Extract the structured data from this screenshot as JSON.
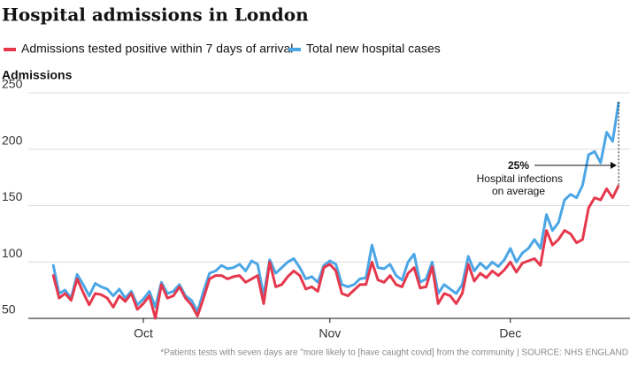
{
  "chart_data": {
    "type": "line",
    "title": "Hospital admissions in London",
    "y_label": "Admissions",
    "categories": [
      null,
      null,
      null,
      null,
      null,
      null,
      null,
      null,
      null,
      null,
      null,
      null,
      null,
      null,
      null,
      "Oct",
      null,
      null,
      null,
      null,
      null,
      null,
      null,
      null,
      null,
      null,
      null,
      null,
      null,
      null,
      null,
      null,
      null,
      null,
      null,
      null,
      null,
      null,
      null,
      null,
      null,
      null,
      null,
      null,
      null,
      null,
      "Nov",
      null,
      null,
      null,
      null,
      null,
      null,
      null,
      null,
      null,
      null,
      null,
      null,
      null,
      null,
      null,
      null,
      null,
      null,
      null,
      null,
      null,
      null,
      null,
      null,
      null,
      null,
      null,
      null,
      null,
      "Dec",
      null,
      null,
      null,
      null,
      null,
      null,
      null,
      null,
      null,
      null,
      null,
      null,
      null,
      null,
      null,
      null,
      null,
      null
    ],
    "series": [
      {
        "name": "Total new hospital cases",
        "color": "#4ba6e6",
        "values": [
          98,
          72,
          75,
          68,
          89,
          80,
          70,
          81,
          78,
          76,
          70,
          76,
          68,
          74,
          62,
          67,
          74,
          60,
          82,
          72,
          74,
          80,
          70,
          66,
          56,
          74,
          90,
          92,
          97,
          94,
          95,
          98,
          92,
          101,
          98,
          70,
          102,
          90,
          95,
          100,
          103,
          95,
          85,
          87,
          82,
          97,
          101,
          98,
          80,
          78,
          80,
          85,
          86,
          115,
          95,
          94,
          98,
          88,
          84,
          100,
          107,
          82,
          85,
          100,
          72,
          80,
          76,
          72,
          80,
          105,
          92,
          99,
          94,
          100,
          96,
          102,
          112,
          100,
          108,
          112,
          120,
          112,
          142,
          128,
          135,
          155,
          160,
          157,
          168,
          195,
          198,
          188,
          215,
          207,
          242
        ]
      },
      {
        "name": "Admissions tested positive within 7 days of arrival",
        "color": "#e5384d",
        "values": [
          89,
          68,
          72,
          66,
          85,
          73,
          62,
          72,
          71,
          68,
          60,
          70,
          65,
          72,
          58,
          63,
          70,
          50,
          80,
          68,
          70,
          78,
          68,
          62,
          52,
          68,
          85,
          88,
          88,
          85,
          87,
          88,
          82,
          85,
          88,
          63,
          100,
          78,
          80,
          87,
          92,
          88,
          76,
          78,
          74,
          95,
          98,
          92,
          72,
          70,
          75,
          80,
          80,
          100,
          84,
          82,
          88,
          80,
          78,
          90,
          95,
          77,
          78,
          96,
          63,
          72,
          70,
          63,
          72,
          98,
          83,
          90,
          86,
          92,
          88,
          93,
          100,
          91,
          99,
          101,
          103,
          97,
          128,
          115,
          120,
          128,
          125,
          117,
          120,
          148,
          157,
          155,
          165,
          157,
          168
        ]
      }
    ],
    "ylim": [
      45,
      255
    ],
    "yticks": [
      50,
      100,
      150,
      200,
      250
    ],
    "grid": true,
    "annotation": {
      "value": "25%",
      "line1": "Hospital infections",
      "line2": "on average"
    },
    "note": "*Patients tests with seven days are \"more likely to [have caught covid] from the community | SOURCE: NHS ENGLAND"
  }
}
